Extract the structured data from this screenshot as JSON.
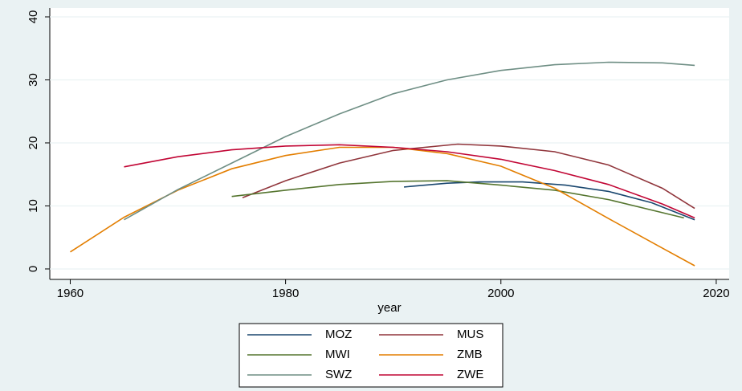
{
  "chart_data": {
    "type": "line",
    "xlabel": "year",
    "xlim": [
      1958.1,
      2021.2
    ],
    "xticks": [
      1960,
      1980,
      2000,
      2020
    ],
    "ylim": [
      -1.66,
      41.4
    ],
    "yticks": [
      0,
      10,
      20,
      30,
      40
    ],
    "grid": true,
    "legend": "bottom",
    "series": [
      {
        "name": "MOZ",
        "color": "#1a476f",
        "x": [
          1991,
          1995,
          1998,
          2002,
          2006,
          2010,
          2014,
          2018
        ],
        "values": [
          13.0,
          13.6,
          13.8,
          13.8,
          13.3,
          12.3,
          10.5,
          7.8
        ]
      },
      {
        "name": "MUS",
        "color": "#90353b",
        "x": [
          1976,
          1980,
          1985,
          1990,
          1996,
          2000,
          2005,
          2010,
          2015,
          2018
        ],
        "values": [
          11.3,
          14.0,
          16.8,
          18.8,
          19.8,
          19.5,
          18.6,
          16.5,
          12.8,
          9.6
        ]
      },
      {
        "name": "MWI",
        "color": "#55752f",
        "x": [
          1975,
          1980,
          1985,
          1990,
          1995,
          2000,
          2005,
          2010,
          2017
        ],
        "values": [
          11.5,
          12.5,
          13.4,
          13.9,
          14.0,
          13.3,
          12.5,
          11.0,
          8.1
        ]
      },
      {
        "name": "ZMB",
        "color": "#e37e00",
        "x": [
          1960,
          1965,
          1970,
          1975,
          1980,
          1985,
          1990,
          1995,
          2000,
          2005,
          2010,
          2015,
          2018
        ],
        "values": [
          2.7,
          8.2,
          12.5,
          15.9,
          18.0,
          19.3,
          19.3,
          18.3,
          16.3,
          12.8,
          8.0,
          3.3,
          0.5
        ]
      },
      {
        "name": "SWZ",
        "color": "#6e8e84",
        "x": [
          1965,
          1970,
          1975,
          1980,
          1985,
          1990,
          1995,
          2000,
          2005,
          2010,
          2015,
          2018
        ],
        "values": [
          7.8,
          12.6,
          16.8,
          21.0,
          24.6,
          27.8,
          30.0,
          31.5,
          32.4,
          32.8,
          32.7,
          32.3
        ]
      },
      {
        "name": "ZWE",
        "color": "#c10534",
        "x": [
          1965,
          1970,
          1975,
          1980,
          1985,
          1990,
          1995,
          2000,
          2005,
          2010,
          2015,
          2018
        ],
        "values": [
          16.2,
          17.8,
          18.9,
          19.5,
          19.7,
          19.3,
          18.6,
          17.4,
          15.6,
          13.4,
          10.3,
          8.1
        ]
      }
    ]
  }
}
